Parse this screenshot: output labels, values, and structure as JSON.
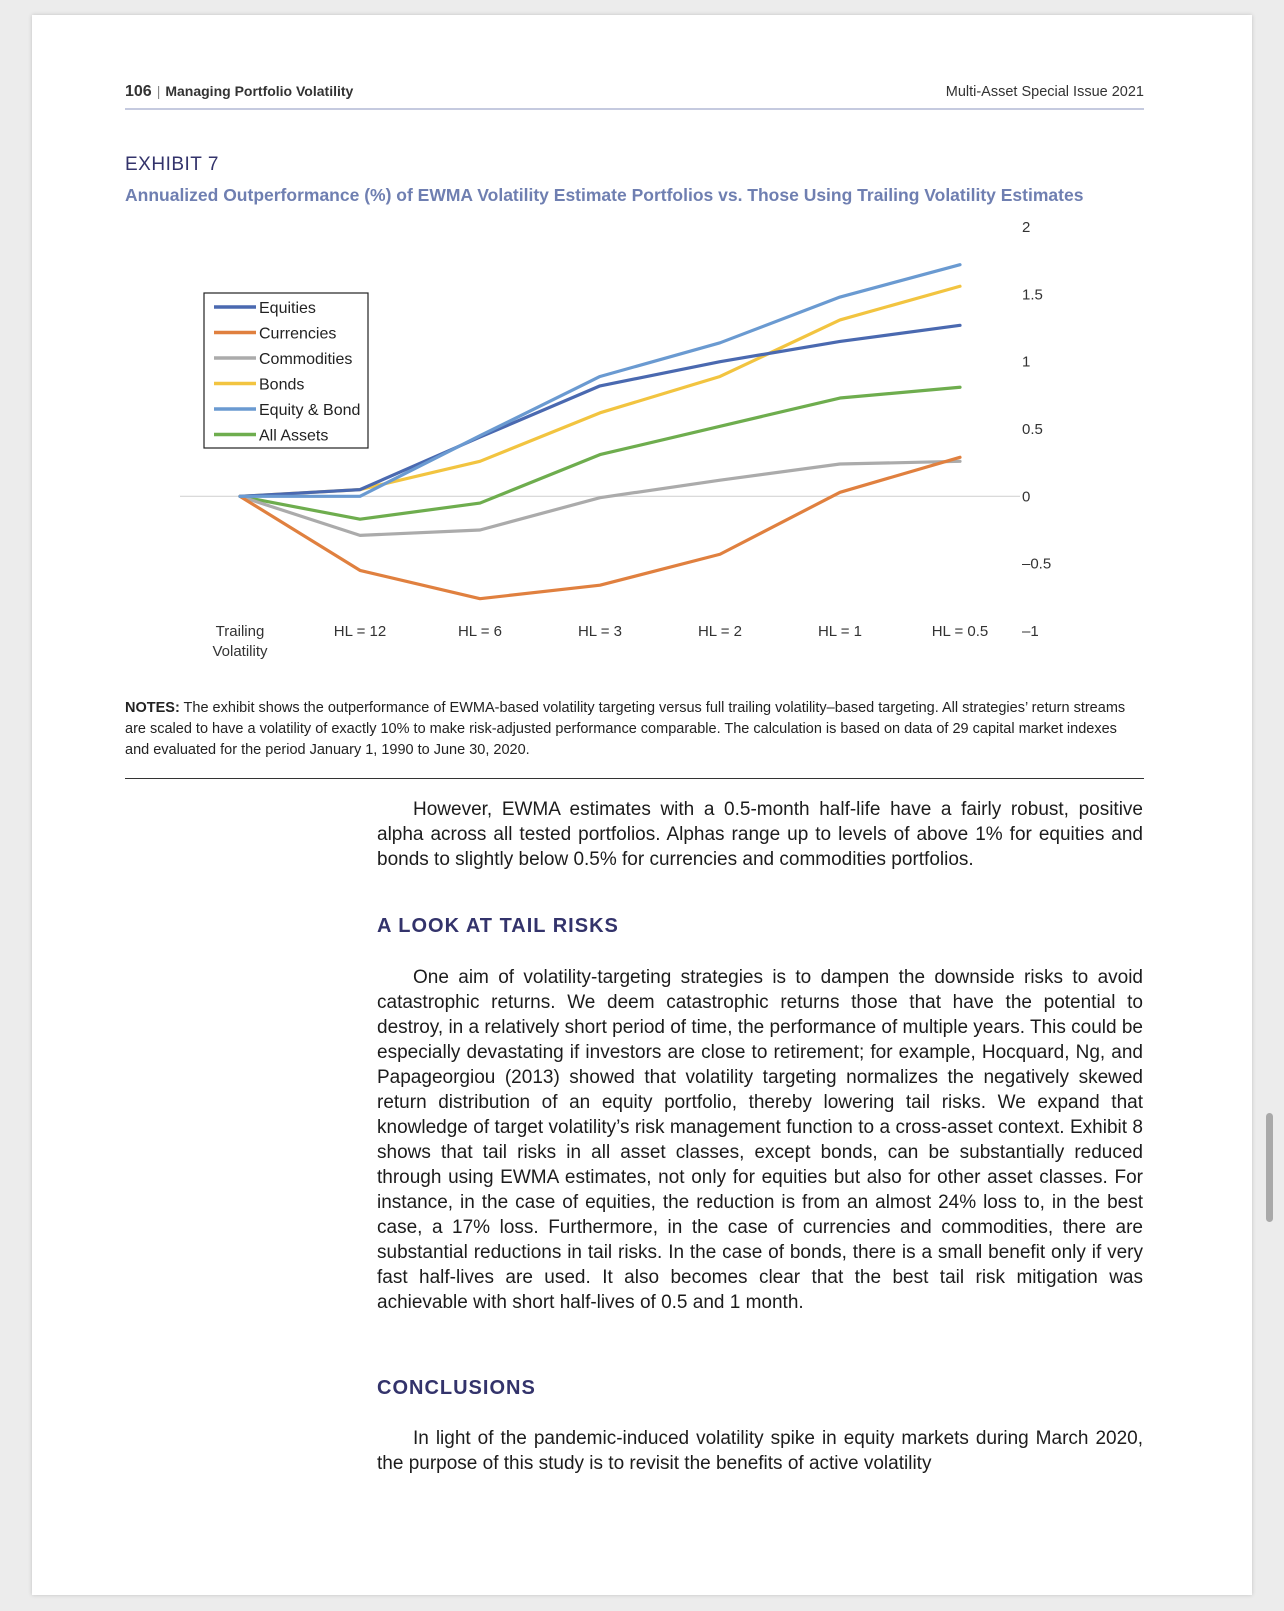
{
  "header": {
    "page_number": "106",
    "separator": "|",
    "section": "Managing Portfolio Volatility",
    "issue": "Multi-Asset Special Issue 2021"
  },
  "exhibit": {
    "label": "EXHIBIT 7",
    "title": "Annualized Outperformance (%) of EWMA Volatility Estimate Portfolios vs. Those Using Trailing Volatility Estimates"
  },
  "chart_data": {
    "type": "line",
    "title": "",
    "xlabel": "",
    "ylabel": "",
    "categories": [
      "Trailing Volatility",
      "HL = 12",
      "HL = 6",
      "HL = 3",
      "HL = 2",
      "HL = 1",
      "HL = 0.5"
    ],
    "category_lines": [
      [
        "Trailing",
        "Volatility"
      ],
      [
        "HL = 12"
      ],
      [
        "HL = 6"
      ],
      [
        "HL = 3"
      ],
      [
        "HL = 2"
      ],
      [
        "HL = 1"
      ],
      [
        "HL = 0.5"
      ]
    ],
    "ylim": [
      -1,
      2
    ],
    "yticks": [
      2,
      1.5,
      1,
      0.5,
      0,
      -0.5,
      -1
    ],
    "ytick_labels": [
      "2",
      "1.5",
      "1",
      "0.5",
      "0",
      "–0.5",
      "–1"
    ],
    "y_axis_side": "right",
    "grid": false,
    "zero_line": true,
    "legend_position": "upper-left",
    "series": [
      {
        "name": "Equities",
        "color": "#4a69b0",
        "values": [
          0,
          0.05,
          0.44,
          0.82,
          1.0,
          1.15,
          1.27
        ]
      },
      {
        "name": "Currencies",
        "color": "#e0803f",
        "values": [
          0,
          -0.55,
          -0.76,
          -0.66,
          -0.43,
          0.03,
          0.29
        ]
      },
      {
        "name": "Commodities",
        "color": "#ababab",
        "values": [
          0,
          -0.29,
          -0.25,
          -0.01,
          0.12,
          0.24,
          0.26
        ]
      },
      {
        "name": "Bonds",
        "color": "#f2c440",
        "values": [
          0,
          0.05,
          0.26,
          0.62,
          0.89,
          1.31,
          1.56
        ]
      },
      {
        "name": "Equity & Bond",
        "color": "#6a9ad1",
        "values": [
          0,
          0.0,
          0.45,
          0.89,
          1.14,
          1.48,
          1.72
        ]
      },
      {
        "name": "All Assets",
        "color": "#6ead4e",
        "values": [
          0,
          -0.17,
          -0.05,
          0.31,
          0.52,
          0.73,
          0.81
        ]
      }
    ]
  },
  "notes": {
    "label": "NOTES:",
    "text": " The exhibit shows the outperformance of EWMA-based volatility targeting versus full trailing volatility–based targeting. All strategies’ return streams are scaled to have a volatility of exactly 10% to make risk-adjusted performance comparable. The calculation is based on data of 29 capital market indexes and evaluated for the period January 1, 1990 to June 30, 2020."
  },
  "body": {
    "p1": "However, EWMA estimates with a 0.5-month half-life have a fairly robust, positive alpha across all tested portfolios. Alphas range up to levels of above 1% for equities and bonds to slightly below 0.5% for currencies and commodities portfolios.",
    "h1": "A LOOK AT TAIL RISKS",
    "p2": "One aim of volatility-targeting strategies is to dampen the downside risks to avoid catastrophic returns. We deem catastrophic returns those that have the potential to destroy, in a relatively short period of time, the performance of multiple years. This could be especially devastating if investors are close to retirement; for example, Hocquard, Ng, and Papageorgiou (2013) showed that volatility targeting normalizes the negatively skewed return distribution of an equity portfolio, thereby lowering tail risks. We expand that knowledge of target volatility’s risk management function to a cross-asset context. Exhibit 8 shows that tail risks in all asset classes, except bonds, can be substantially reduced through using EWMA estimates, not only for equities but also for other asset classes. For instance, in the case of equities, the reduction is from an almost 24% loss to, in the best case, a 17% loss. Furthermore, in the case of currencies and commodities, there are substantial reductions in tail risks. In the case of bonds, there is a small benefit only if very fast half-lives are used. It also becomes clear that the best tail risk mitigation was achievable with short half-lives of 0.5 and 1 month.",
    "h2": "CONCLUSIONS",
    "p3": "In light of the pandemic-induced volatility spike in equity markets during March 2020, the purpose of this study is to revisit the benefits of active volatility"
  }
}
